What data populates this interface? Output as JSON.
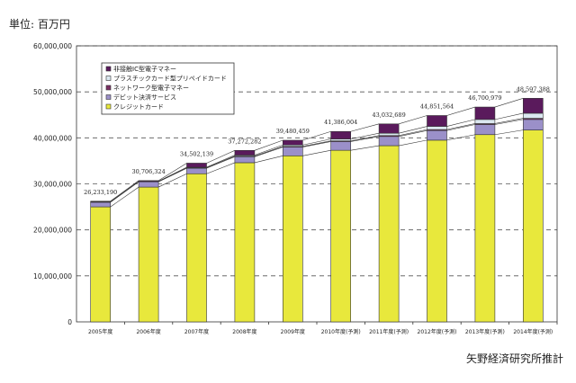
{
  "unit_label": "単位: 百万円",
  "source": "矢野経済研究所推計",
  "chart_data": {
    "type": "bar",
    "stacked": true,
    "title": "",
    "xlabel": "",
    "ylabel": "",
    "ylim": [
      0,
      60000000
    ],
    "yticks": [
      "0",
      "10,000,000",
      "20,000,000",
      "30,000,000",
      "40,000,000",
      "50,000,000",
      "60,000,000"
    ],
    "ytick_values": [
      0,
      10000000,
      20000000,
      30000000,
      40000000,
      50000000,
      60000000
    ],
    "grid": "dashed horizontal",
    "legend": "top-left",
    "categories": [
      "2005年度",
      "2006年度",
      "2007年度",
      "2008年度",
      "2009年度",
      "2010年度(予測)",
      "2011年度(予測)",
      "2012年度(予測)",
      "2013年度(予測)",
      "2014年度(予測)"
    ],
    "totals": [
      26233190,
      30706324,
      34502139,
      37272282,
      39480459,
      41386004,
      43032689,
      44851564,
      46700979,
      48597388
    ],
    "total_labels": [
      "26,233,190",
      "30,706,324",
      "34,502,139",
      "37,272,282",
      "39,480,459",
      "41,386,004",
      "43,032,689",
      "44,851,564",
      "46,700,979",
      "48,597,388"
    ],
    "series": [
      {
        "name": "クレジットカード",
        "color": "#e8e83c",
        "values": [
          25000000,
          29300000,
          32200000,
          34600000,
          36100000,
          37300000,
          38300000,
          39500000,
          40700000,
          41700000
        ]
      },
      {
        "name": "デビット決済サービス",
        "color": "#9b90c9",
        "values": [
          1000000,
          1150000,
          1200000,
          1300000,
          1900000,
          1900000,
          2000000,
          2100000,
          2200000,
          2300000
        ]
      },
      {
        "name": "ネットワーク型電子マネー",
        "color": "#7a2f62",
        "values": [
          50000,
          50000,
          100000,
          150000,
          150000,
          150000,
          200000,
          200000,
          200000,
          250000
        ]
      },
      {
        "name": "プラスチックカード型プリペイドカード",
        "color": "#dbe8f0",
        "values": [
          50000,
          50000,
          100000,
          200000,
          300000,
          400000,
          500000,
          700000,
          900000,
          1100000
        ]
      },
      {
        "name": "非接触IC型電子マネー",
        "color": "#5a1a5c",
        "values": [
          133190,
          156324,
          902139,
          1022282,
          1030459,
          1636004,
          2032689,
          2351564,
          2700979,
          3247388
        ]
      }
    ]
  }
}
